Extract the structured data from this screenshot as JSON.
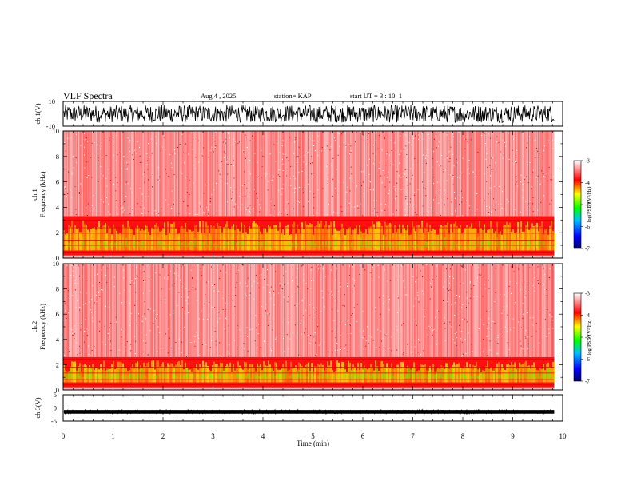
{
  "header": {
    "title": "VLF Spectra",
    "date": "Aug.4 , 2025",
    "station": "station= KAP",
    "start": "start UT = 3 : 10: 1"
  },
  "chart_data": [
    {
      "type": "line",
      "name": "ch1-waveform",
      "ylabel": "ch.1(V)",
      "ylim": [
        -10,
        10
      ],
      "yticks": [
        "10",
        "-10"
      ],
      "xlim": [
        0,
        10
      ],
      "x_data_end_min": 9.83,
      "description_level": "dense noisy waveform spanning roughly -7 V to 7 V"
    },
    {
      "type": "heatmap",
      "name": "ch1-spectrogram",
      "ylabel": "ch.1 Frequency (kHz)",
      "ylim": [
        0,
        10
      ],
      "yticks": [
        "0",
        "2",
        "4",
        "6",
        "8",
        "10"
      ],
      "xlim": [
        0,
        10
      ],
      "x_data_end_min": 9.83,
      "band_top_khz": 3.3,
      "colorbar": {
        "label": "log(PSD)(V²/Hz)",
        "range": [
          -7,
          -3
        ],
        "ticks": [
          "-3",
          "-4",
          "-5",
          "-6",
          "-7"
        ]
      }
    },
    {
      "type": "heatmap",
      "name": "ch2-spectrogram",
      "ylabel": "ch.2 Frequency (kHz)",
      "ylim": [
        0,
        10
      ],
      "yticks": [
        "0",
        "2",
        "4",
        "6",
        "8",
        "10"
      ],
      "xlim": [
        0,
        10
      ],
      "x_data_end_min": 9.83,
      "band_top_khz": 2.6,
      "colorbar": {
        "label": "log(PSD)(V²/Hz)",
        "range": [
          -7,
          -3
        ],
        "ticks": [
          "-3",
          "-4",
          "-5",
          "-6",
          "-7"
        ]
      }
    },
    {
      "type": "line",
      "name": "ch3-waveform",
      "ylabel": "ch.3(V)",
      "ylim": [
        -5,
        5
      ],
      "yticks": [
        "5",
        "0",
        "-5"
      ],
      "xlim": [
        0,
        10
      ],
      "x_data_end_min": 9.83,
      "level_v": -1.5,
      "xlabel": "Time (min)",
      "xticks": [
        "0",
        "1",
        "2",
        "3",
        "4",
        "5",
        "6",
        "7",
        "8",
        "9",
        "10"
      ]
    }
  ]
}
